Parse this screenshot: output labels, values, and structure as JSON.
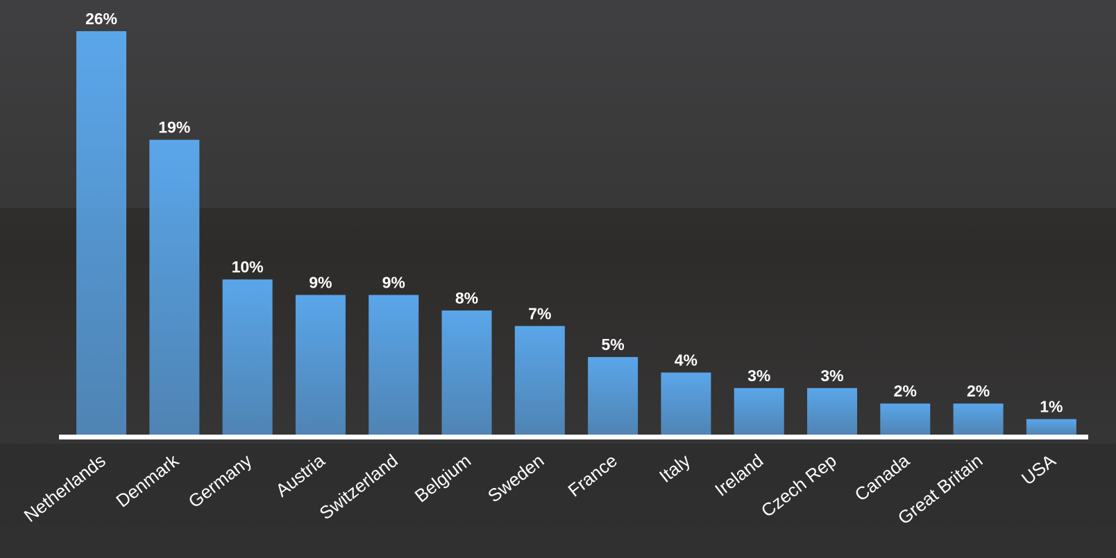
{
  "chart_data": {
    "type": "bar",
    "categories": [
      "Netherlands",
      "Denmark",
      "Germany",
      "Austria",
      "Switzerland",
      "Belgium",
      "Sweden",
      "France",
      "Italy",
      "Ireland",
      "Czech Rep",
      "Canada",
      "Great Britain",
      "USA"
    ],
    "values": [
      26,
      19,
      10,
      9,
      9,
      8,
      7,
      5,
      4,
      3,
      3,
      2,
      2,
      1
    ],
    "value_labels": [
      "26%",
      "19%",
      "10%",
      "9%",
      "9%",
      "8%",
      "7%",
      "5%",
      "4%",
      "3%",
      "3%",
      "2%",
      "2%",
      "1%"
    ],
    "color": "#5aa6ea"
  }
}
